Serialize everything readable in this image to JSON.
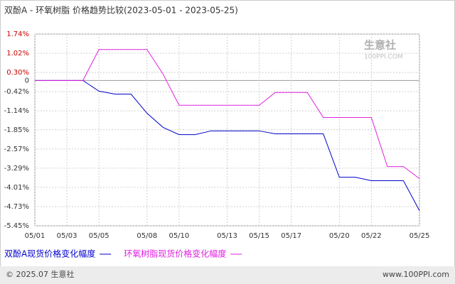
{
  "chart_data": {
    "type": "line",
    "title": "双酚A - 环氧树脂 价格趋势比较(2023-05-01 - 2023-05-25)",
    "categories": [
      "05/01",
      null,
      "05/03",
      null,
      "05/05",
      null,
      null,
      "05/08",
      null,
      "05/10",
      null,
      null,
      "05/13",
      null,
      "05/15",
      null,
      "05/17",
      null,
      null,
      "05/20",
      null,
      "05/22",
      null,
      null,
      "05/25"
    ],
    "series": [
      {
        "name": "双酚A现货价格变化幅度",
        "color": "#0000cc",
        "values": [
          0,
          0,
          0,
          0,
          -0.4,
          -0.51,
          -0.51,
          -1.23,
          -1.76,
          -2.03,
          -2.03,
          -1.89,
          -1.89,
          -1.89,
          -1.89,
          -2.0,
          -2.0,
          -2.0,
          -2.0,
          -3.63,
          -3.63,
          -3.76,
          -3.76,
          -3.76,
          -4.88
        ]
      },
      {
        "name": "环氧树脂现货价格变化幅度",
        "color": "#e020e0",
        "values": [
          0,
          0,
          0,
          0,
          1.16,
          1.16,
          1.16,
          1.16,
          0.24,
          -0.93,
          -0.93,
          -0.93,
          -0.93,
          -0.93,
          -0.93,
          -0.45,
          -0.45,
          -0.45,
          -1.39,
          -1.39,
          -1.39,
          -1.39,
          -3.23,
          -3.23,
          -3.68
        ]
      }
    ],
    "ylim": [
      -5.45,
      1.74
    ],
    "yticks": [
      {
        "value": 1.74,
        "label": "1.74%"
      },
      {
        "value": 1.02,
        "label": "1.02%"
      },
      {
        "value": 0.3,
        "label": "0.30%"
      },
      0,
      {
        "value": -0.42,
        "label": "-0.42%"
      },
      {
        "value": -1.14,
        "label": "-1.14%"
      },
      {
        "value": -1.85,
        "label": "-1.85%"
      },
      {
        "value": -2.57,
        "label": "-2.57%"
      },
      {
        "value": -3.29,
        "label": "-3.29%"
      },
      {
        "value": -4.01,
        "label": "-4.01%"
      },
      {
        "value": -4.73,
        "label": "-4.73%"
      },
      {
        "value": -5.45,
        "label": "-5.45%"
      }
    ],
    "grid": true,
    "watermark": [
      "生意社",
      "100PPI.COM"
    ],
    "footer": {
      "left": "© 2025.07 生意社",
      "right": "www.100PPI.com"
    }
  }
}
